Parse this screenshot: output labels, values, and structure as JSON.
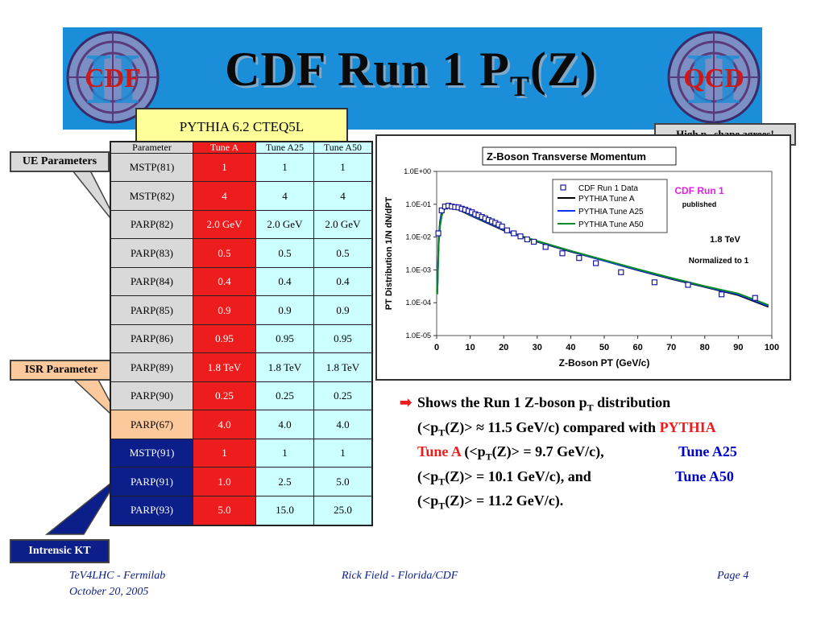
{
  "title": {
    "main": "CDF Run 1 P",
    "sub": "T",
    "end": "(Z)"
  },
  "logos": {
    "left": "CDF",
    "right": "QCD"
  },
  "scroll_label": "PYTHIA 6.2 CTEQ5L",
  "callouts": {
    "ue": "UE Parameters",
    "isr": "ISR Parameter",
    "kt": "Intrensic KT",
    "high_pt": {
      "pre": "High p",
      "sub": "T",
      "post": " shape agrees!"
    }
  },
  "table": {
    "headers": [
      "Parameter",
      "Tune A",
      "Tune A25",
      "Tune A50"
    ],
    "rows": [
      {
        "param": "MSTP(81)",
        "a": "1",
        "a25": "1",
        "a50": "1",
        "group": "ue"
      },
      {
        "param": "MSTP(82)",
        "a": "4",
        "a25": "4",
        "a50": "4",
        "group": "ue"
      },
      {
        "param": "PARP(82)",
        "a": "2.0 GeV",
        "a25": "2.0 GeV",
        "a50": "2.0 GeV",
        "group": "ue"
      },
      {
        "param": "PARP(83)",
        "a": "0.5",
        "a25": "0.5",
        "a50": "0.5",
        "group": "ue"
      },
      {
        "param": "PARP(84)",
        "a": "0.4",
        "a25": "0.4",
        "a50": "0.4",
        "group": "ue"
      },
      {
        "param": "PARP(85)",
        "a": "0.9",
        "a25": "0.9",
        "a50": "0.9",
        "group": "ue"
      },
      {
        "param": "PARP(86)",
        "a": "0.95",
        "a25": "0.95",
        "a50": "0.95",
        "group": "ue"
      },
      {
        "param": "PARP(89)",
        "a": "1.8 TeV",
        "a25": "1.8 TeV",
        "a50": "1.8 TeV",
        "group": "ue"
      },
      {
        "param": "PARP(90)",
        "a": "0.25",
        "a25": "0.25",
        "a50": "0.25",
        "group": "ue"
      },
      {
        "param": "PARP(67)",
        "a": "4.0",
        "a25": "4.0",
        "a50": "4.0",
        "group": "isr"
      },
      {
        "param": "MSTP(91)",
        "a": "1",
        "a25": "1",
        "a50": "1",
        "group": "kt"
      },
      {
        "param": "PARP(91)",
        "a": "1.0",
        "a25": "2.5",
        "a50": "5.0",
        "group": "kt"
      },
      {
        "param": "PARP(93)",
        "a": "5.0",
        "a25": "15.0",
        "a50": "25.0",
        "group": "kt"
      }
    ]
  },
  "colors": {
    "tune_a": "#ee1d1d",
    "tune_a25": "#0000ff",
    "tune_a50": "#008000",
    "data": "#1a1a9e",
    "banner": "#1a8ed8"
  },
  "chart_data": {
    "type": "scatter",
    "title": "Z-Boson Transverse Momentum",
    "xlabel": "Z-Boson PT (GeV/c)",
    "ylabel": "PT Distribution 1/N dN/dPT",
    "xlim": [
      0,
      100
    ],
    "ylim": [
      1e-05,
      1
    ],
    "yscale": "log",
    "x_ticks": [
      "0",
      "10",
      "20",
      "30",
      "40",
      "50",
      "60",
      "70",
      "80",
      "90",
      "100"
    ],
    "y_ticks": [
      "1.0E+00",
      "1.0E-01",
      "1.0E-02",
      "1.0E-03",
      "1.0E-04",
      "1.0E-05"
    ],
    "annotations": {
      "experiment": "CDF Run 1",
      "status": "published",
      "energy": "1.8 TeV",
      "norm": "Normalized to 1"
    },
    "legend_position": "top-right",
    "data_series": {
      "name": "CDF Run 1 Data",
      "x": [
        0.5,
        1.5,
        2.5,
        3.5,
        4.5,
        5.5,
        6.5,
        7.5,
        8.5,
        9.5,
        10.5,
        11.5,
        12.5,
        13.5,
        14.5,
        15.5,
        16.5,
        17.5,
        18.5,
        19.5,
        21,
        23,
        25,
        27,
        29,
        32.5,
        37.5,
        42.5,
        47.5,
        55,
        65,
        75,
        85,
        95
      ],
      "y": [
        0.013,
        0.065,
        0.085,
        0.09,
        0.085,
        0.082,
        0.08,
        0.073,
        0.068,
        0.062,
        0.057,
        0.05,
        0.046,
        0.041,
        0.037,
        0.033,
        0.03,
        0.027,
        0.024,
        0.021,
        0.016,
        0.013,
        0.0105,
        0.0085,
        0.0072,
        0.005,
        0.0032,
        0.0023,
        0.0016,
        0.00085,
        0.00042,
        0.00035,
        0.00018,
        0.00014
      ]
    },
    "series": [
      {
        "name": "PYTHIA Tune A",
        "x": [
          0.2,
          0.6,
          1.0,
          1.5,
          2.0,
          2.5,
          3.0,
          4.0,
          5.0,
          6.0,
          8.0,
          10,
          12,
          15,
          20,
          25,
          30,
          40,
          50,
          60,
          70,
          80,
          90,
          99
        ],
        "y": [
          0.00022,
          0.009,
          0.03,
          0.058,
          0.078,
          0.088,
          0.092,
          0.088,
          0.08,
          0.072,
          0.058,
          0.046,
          0.037,
          0.027,
          0.016,
          0.0105,
          0.0072,
          0.0036,
          0.0019,
          0.00098,
          0.00053,
          0.0003,
          0.00017,
          7.5e-05
        ]
      },
      {
        "name": "PYTHIA Tune A25",
        "x": [
          0.2,
          0.6,
          1.0,
          1.5,
          2.0,
          2.5,
          3.0,
          4.0,
          5.0,
          6.0,
          8.0,
          10,
          12,
          15,
          20,
          25,
          30,
          40,
          50,
          60,
          70,
          80,
          90,
          99
        ],
        "y": [
          0.0002,
          0.008,
          0.027,
          0.054,
          0.074,
          0.084,
          0.089,
          0.087,
          0.08,
          0.072,
          0.059,
          0.047,
          0.038,
          0.028,
          0.0165,
          0.0108,
          0.0074,
          0.0037,
          0.0019,
          0.001,
          0.00055,
          0.00031,
          0.00018,
          8e-05
        ]
      },
      {
        "name": "PYTHIA Tune A50",
        "x": [
          0.2,
          0.6,
          1.0,
          1.5,
          2.0,
          2.5,
          3.0,
          4.0,
          5.0,
          6.0,
          8.0,
          10,
          12,
          15,
          20,
          25,
          30,
          40,
          50,
          60,
          70,
          80,
          90,
          99
        ],
        "y": [
          0.00018,
          0.006,
          0.021,
          0.043,
          0.062,
          0.074,
          0.08,
          0.082,
          0.078,
          0.071,
          0.059,
          0.048,
          0.039,
          0.029,
          0.017,
          0.011,
          0.0076,
          0.0038,
          0.002,
          0.00105,
          0.00057,
          0.00032,
          0.00019,
          8.5e-05
        ]
      }
    ]
  },
  "bullet": {
    "l1a": "Shows the Run 1 Z-boson p",
    "l1b": "T",
    "l1c": " distribution",
    "l2a": "(<p",
    "l2b": "T",
    "l2c": "(Z)> ≈ 11.5 GeV/c) compared with ",
    "l2d": "PYTHIA",
    "l3a": "Tune A",
    "l3b": " (<p",
    "l3c": "T",
    "l3d": "(Z)> = 9.7 GeV/c),",
    "l3e": "Tune A25",
    "l4a": "(<p",
    "l4b": "T",
    "l4c": "(Z)> = 10.1 GeV/c), and",
    "l4d": "Tune A50",
    "l5a": "(<p",
    "l5b": "T",
    "l5c": "(Z)> = 11.2 GeV/c)."
  },
  "footer": {
    "left1": "TeV4LHC - Fermilab",
    "left2": "October 20, 2005",
    "center": "Rick Field - Florida/CDF",
    "right": "Page 4"
  }
}
